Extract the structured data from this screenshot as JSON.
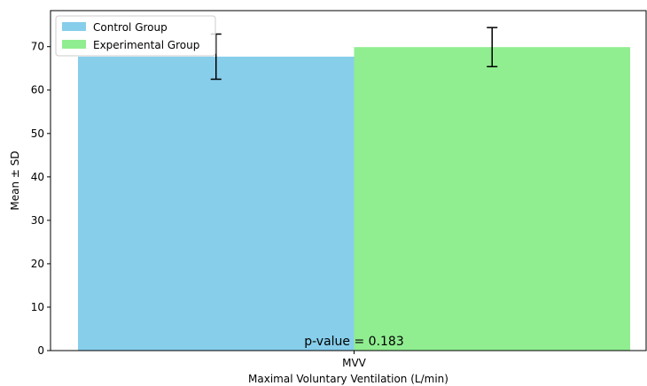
{
  "chart_data": {
    "type": "bar",
    "categories": [
      "MVV"
    ],
    "series": [
      {
        "name": "Control Group",
        "values": [
          67.7
        ],
        "error": [
          5.2
        ],
        "color": "#87ceeb"
      },
      {
        "name": "Experimental Group",
        "values": [
          69.9
        ],
        "error": [
          4.5
        ],
        "color": "#90ee90"
      }
    ],
    "xlabel": "Maximal Voluntary Ventilation (L/min)",
    "ylabel": "Mean ± SD",
    "ylim": [
      0,
      78.3
    ],
    "yticks": [
      0,
      10,
      20,
      30,
      40,
      50,
      60,
      70
    ],
    "legend_position": "top-left",
    "grid": false,
    "annotation": "p-value = 0.183"
  }
}
